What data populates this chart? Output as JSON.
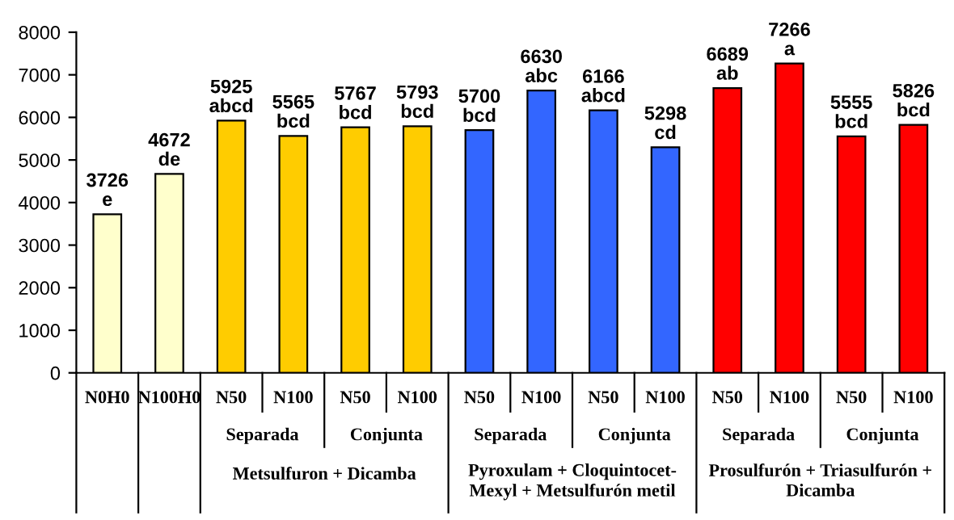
{
  "chart_data": {
    "type": "bar",
    "categories": [
      "N0H0",
      "N100H0",
      "N50",
      "N100",
      "N50",
      "N100",
      "N50",
      "N100",
      "N50",
      "N100",
      "N50",
      "N100",
      "N50",
      "N100"
    ],
    "values": [
      3726,
      4672,
      5925,
      5565,
      5767,
      5793,
      5700,
      6630,
      6166,
      5298,
      6689,
      7266,
      5555,
      5826
    ],
    "colors": [
      "#ffffcc",
      "#ffffcc",
      "#ffcc00",
      "#ffcc00",
      "#ffcc00",
      "#ffcc00",
      "#3366ff",
      "#3366ff",
      "#3366ff",
      "#3366ff",
      "#ff0000",
      "#ff0000",
      "#ff0000",
      "#ff0000"
    ],
    "value_labels": [
      "3726\ne",
      "4672\nde",
      "5925\nabcd",
      "5565\nbcd",
      "5767\nbcd",
      "5793\nbcd",
      "5700\nbcd",
      "6630\nabc",
      "6166\nabcd",
      "5298\ncd",
      "6689\nab",
      "7266\na",
      "5555\nbcd",
      "5826\nbcd"
    ],
    "ylim": [
      0,
      8000
    ],
    "yticks": [
      0,
      1000,
      2000,
      3000,
      4000,
      5000,
      6000,
      7000,
      8000
    ],
    "grid": false,
    "legend": false,
    "annotations": [
      "Separada",
      "Conjunta",
      "Separada",
      "Conjunta",
      "Separada",
      "Conjunta",
      "Metsulfuron + Dicamba",
      "Pyroxulam + Cloquintocet-\nMexyl + Metsulfurón metil",
      "Prosulfurón + Triasulfurón +\nDicamba"
    ]
  }
}
